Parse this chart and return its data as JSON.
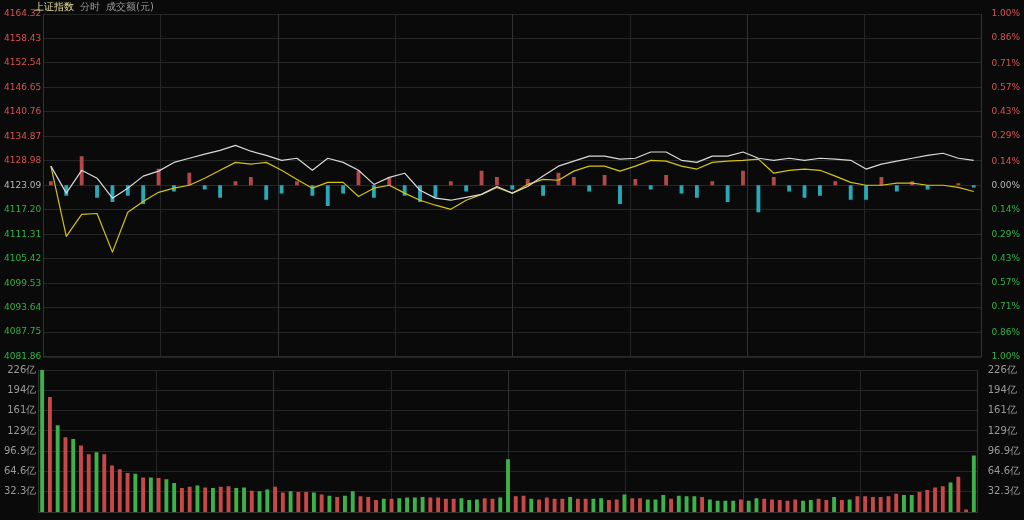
{
  "chart_data": [
    {
      "type": "line",
      "title": "上证指数",
      "annotations": [
        "分时",
        "成交额(元)"
      ],
      "categories": [
        null,
        null,
        null,
        null,
        null,
        null,
        null,
        null,
        null,
        null,
        null,
        null,
        null,
        null,
        null,
        null,
        null,
        null,
        null,
        null,
        null,
        null,
        null,
        null,
        null,
        null,
        null,
        null,
        null,
        null,
        null,
        null,
        null,
        null,
        null,
        null,
        null,
        null,
        null,
        null,
        null,
        null,
        null,
        null,
        null,
        null,
        null,
        null,
        null,
        null,
        null,
        null,
        null,
        null,
        null,
        null,
        null,
        null,
        null,
        null,
        null
      ],
      "series": [
        {
          "type": "bar",
          "base": [
            4123.09,
            4123.09,
            4123.09,
            4123.09,
            4123.09,
            4123.09,
            4123.09,
            4123.09,
            4123.09,
            4123.09,
            4123.09,
            4123.09,
            4123.09,
            4123.09,
            4123.09,
            4123.09,
            4123.09,
            4123.09,
            4123.09,
            4123.09,
            4123.09,
            4123.09,
            4123.09,
            4123.09,
            4123.09,
            4123.09,
            4123.09,
            4123.09,
            4123.09,
            4123.09,
            4123.09,
            4123.09,
            4123.09,
            4123.09,
            4123.09,
            4123.09,
            4123.09,
            4123.09,
            4123.09,
            4123.09,
            4123.09,
            4123.09,
            4123.09,
            4123.09,
            4123.09,
            4123.09,
            4123.09,
            4123.09,
            4123.09,
            4123.09,
            4123.09,
            4123.09,
            4123.09,
            4123.09,
            4123.09,
            4123.09,
            4123.09,
            4123.09,
            null,
            4123.09,
            4123.09
          ],
          "values": [
            1.0,
            -2.5,
            7.0,
            -3.0,
            -4.0,
            -2.5,
            -4.5,
            4.0,
            -1.5,
            3.0,
            -1.0,
            -3.0,
            1.0,
            2.0,
            -3.5,
            -2.0,
            1.0,
            -2.5,
            -5.0,
            -2.0,
            3.5,
            -3.0,
            2.0,
            -2.5,
            -4.0,
            -3.0,
            1.0,
            -1.5,
            3.5,
            2.0,
            -1.0,
            1.5,
            -2.5,
            3.0,
            2.0,
            -1.5,
            2.5,
            -4.5,
            1.5,
            -1.0,
            2.5,
            -2.0,
            -3.0,
            1.0,
            -4.0,
            3.5,
            -6.5,
            2.0,
            -1.5,
            -3.0,
            -2.5,
            1.0,
            -3.5,
            -3.5,
            2.0,
            -1.5,
            1.0,
            -1.0,
            null,
            0.5,
            -0.5
          ],
          "colors": [
            "#b24848",
            "#29a9b8",
            "#b24848",
            "#29a9b8",
            "#29a9b8",
            "#29a9b8",
            "#29a9b8",
            "#b24848",
            "#29a9b8",
            "#b24848",
            "#29a9b8",
            "#29a9b8",
            "#b24848",
            "#b24848",
            "#29a9b8",
            "#29a9b8",
            "#b24848",
            "#29a9b8",
            "#29a9b8",
            "#29a9b8",
            "#b24848",
            "#29a9b8",
            "#b24848",
            "#29a9b8",
            "#29a9b8",
            "#29a9b8",
            "#b24848",
            "#29a9b8",
            "#b24848",
            "#b24848",
            "#29a9b8",
            "#b24848",
            "#29a9b8",
            "#b24848",
            "#b24848",
            "#29a9b8",
            "#b24848",
            "#29a9b8",
            "#b24848",
            "#29a9b8",
            "#b24848",
            "#29a9b8",
            "#29a9b8",
            "#b24848",
            "#29a9b8",
            "#b24848",
            "#29a9b8",
            "#b24848",
            "#29a9b8",
            "#29a9b8",
            "#29a9b8",
            "#b24848",
            "#29a9b8",
            "#29a9b8",
            "#b24848",
            "#29a9b8",
            "#b24848",
            "#29a9b8",
            "#29a9b8",
            "#b24848",
            "#29a9b8"
          ]
        },
        {
          "type": "line",
          "color": "#d8d8d8",
          "values": [
            4127.7,
            4121.2,
            4126.7,
            4124.8,
            4120.0,
            4122.4,
            4125.3,
            4126.5,
            4128.6,
            4129.6,
            4130.6,
            4131.5,
            4132.7,
            4131.3,
            4130.3,
            4129.1,
            4129.6,
            4126.7,
            4129.6,
            4128.6,
            4126.7,
            4123.3,
            4125.0,
            4126.0,
            4121.9,
            4120.0,
            4119.5,
            4120.2,
            4120.9,
            4122.8,
            4121.2,
            4122.8,
            4125.3,
            4127.7,
            4128.9,
            4130.1,
            4130.1,
            4129.4,
            4129.6,
            4131.1,
            4131.1,
            4129.1,
            4128.6,
            4130.1,
            4130.1,
            4131.1,
            4129.6,
            4129.1,
            4129.6,
            4129.1,
            4129.6,
            4129.4,
            4129.1,
            4127.0,
            4128.2,
            4128.9,
            4129.6,
            4130.3,
            4130.8,
            4129.6,
            4129.1
          ]
        },
        {
          "type": "line",
          "color": "#d4c312",
          "values": [
            4127.7,
            4110.8,
            4116.1,
            4116.3,
            4107.0,
            4116.6,
            4119.2,
            4121.4,
            4122.4,
            4123.1,
            4124.8,
            4126.7,
            4128.6,
            4128.2,
            4128.6,
            4126.7,
            4124.5,
            4122.4,
            4123.8,
            4123.8,
            4120.4,
            4122.4,
            4123.1,
            4121.2,
            4119.5,
            4118.3,
            4117.3,
            4119.5,
            4120.9,
            4122.6,
            4121.2,
            4123.3,
            4124.5,
            4124.3,
            4126.5,
            4127.7,
            4127.7,
            4126.5,
            4127.7,
            4129.1,
            4128.9,
            4127.7,
            4127.0,
            4128.6,
            4128.9,
            4129.1,
            4129.4,
            4126.0,
            4126.7,
            4127.0,
            4126.7,
            4125.3,
            4123.8,
            4123.1,
            4123.1,
            4123.6,
            4123.6,
            4123.1,
            4123.1,
            4122.6,
            4121.6
          ]
        }
      ],
      "ylim": [
        4081.86,
        4164.32
      ],
      "yticks": [
        {
          "value": 4081.86,
          "label": "4081.86"
        },
        {
          "value": 4087.75,
          "label": "4087.75"
        },
        {
          "value": 4093.64,
          "label": "4093.64"
        },
        {
          "value": 4099.53,
          "label": "4099.53"
        },
        {
          "value": 4105.42,
          "label": "4105.42"
        },
        {
          "value": 4111.31,
          "label": "4111.31"
        },
        {
          "value": 4117.2,
          "label": "4117.20"
        },
        {
          "value": 4123.09,
          "label": "4123.09"
        },
        {
          "value": 4128.98,
          "label": "4128.98"
        },
        {
          "value": 4134.87,
          "label": "4134.87"
        },
        {
          "value": 4140.76,
          "label": "4140.76"
        },
        {
          "value": 4146.65,
          "label": "4146.65"
        },
        {
          "value": 4152.54,
          "label": "4152.54"
        },
        {
          "value": 4158.43,
          "label": "4158.43"
        },
        {
          "value": 4164.32,
          "label": "4164.32"
        }
      ],
      "y2lim": [
        -1.0,
        1.0
      ],
      "y2ticks": [
        {
          "value": -1.0,
          "label": "1.00%"
        },
        {
          "value": -0.86,
          "label": "0.86%"
        },
        {
          "value": -0.71,
          "label": "0.71%"
        },
        {
          "value": -0.57,
          "label": "0.57%"
        },
        {
          "value": -0.43,
          "label": "0.43%"
        },
        {
          "value": -0.29,
          "label": "0.29%"
        },
        {
          "value": -0.14,
          "label": "0.14%"
        },
        {
          "value": 0,
          "label": "0.00%"
        },
        {
          "value": 0.14,
          "label": "0.14%"
        },
        {
          "value": 0.29,
          "label": "0.29%"
        },
        {
          "value": 0.43,
          "label": "0.43%"
        },
        {
          "value": 0.57,
          "label": "0.57%"
        },
        {
          "value": 0.71,
          "label": "0.71%"
        },
        {
          "value": 0.86,
          "label": "0.86%"
        },
        {
          "value": 1.0,
          "label": "1.00%"
        }
      ],
      "grid": true,
      "marker": "none"
    },
    {
      "type": "bar",
      "categories": [
        null,
        null,
        null,
        null,
        null,
        null,
        null,
        null,
        null,
        null,
        null,
        null,
        null,
        null,
        null,
        null,
        null,
        null,
        null,
        null,
        null,
        null,
        null,
        null,
        null,
        null,
        null,
        null,
        null,
        null,
        null,
        null,
        null,
        null,
        null,
        null,
        null,
        null,
        null,
        null,
        null,
        null,
        null,
        null,
        null,
        null,
        null,
        null,
        null,
        null,
        null,
        null,
        null,
        null,
        null,
        null,
        null,
        null,
        null,
        null,
        null,
        null,
        null,
        null,
        null,
        null,
        null,
        null,
        null,
        null,
        null,
        null,
        null,
        null,
        null,
        null,
        null,
        null,
        null,
        null,
        null,
        null,
        null,
        null,
        null,
        null,
        null,
        null,
        null,
        null,
        null,
        null,
        null,
        null,
        null,
        null,
        null,
        null,
        null,
        null,
        null,
        null,
        null,
        null,
        null,
        null,
        null,
        null,
        null,
        null,
        null,
        null,
        null,
        null,
        null,
        null,
        null,
        null,
        null,
        null,
        null
      ],
      "values": [
        226,
        183,
        138,
        119,
        116,
        106,
        92,
        95,
        92,
        74,
        68,
        62,
        61,
        55,
        55,
        54,
        52,
        46,
        38,
        40,
        42,
        39,
        38,
        40,
        41,
        38,
        39,
        34,
        33,
        36,
        40,
        31,
        33,
        32,
        32,
        31,
        28,
        26,
        24,
        26,
        33,
        25,
        24,
        19,
        21,
        21,
        22,
        23,
        23,
        24,
        23,
        23,
        21,
        21,
        22,
        19,
        20,
        22,
        21,
        23,
        84,
        25,
        26,
        21,
        20,
        23,
        21,
        21,
        24,
        21,
        21,
        21,
        22,
        19,
        20,
        28,
        22,
        22,
        20,
        20,
        27,
        21,
        26,
        25,
        25,
        24,
        20,
        18,
        18,
        18,
        20,
        18,
        22,
        21,
        20,
        19,
        18,
        20,
        18,
        19,
        21,
        19,
        24,
        19,
        20,
        25,
        25,
        24,
        24,
        25,
        29,
        27,
        27,
        32,
        35,
        39,
        41,
        47,
        56,
        4,
        90
      ],
      "colors": [
        "#3cb34a",
        "#c8484a",
        "#3cb34a",
        "#c8484a",
        "#3cb34a",
        "#c8484a",
        "#c8484a",
        "#3cb34a",
        "#c8484a",
        "#c8484a",
        "#c8484a",
        "#c8484a",
        "#3cb34a",
        "#c8484a",
        "#3cb34a",
        "#c8484a",
        "#3cb34a",
        "#3cb34a",
        "#c8484a",
        "#c8484a",
        "#3cb34a",
        "#c8484a",
        "#3cb34a",
        "#c8484a",
        "#c8484a",
        "#3cb34a",
        "#3cb34a",
        "#c8484a",
        "#3cb34a",
        "#3cb34a",
        "#c8484a",
        "#c8484a",
        "#3cb34a",
        "#c8484a",
        "#c8484a",
        "#3cb34a",
        "#c8484a",
        "#3cb34a",
        "#c8484a",
        "#3cb34a",
        "#3cb34a",
        "#c8484a",
        "#c8484a",
        "#c8484a",
        "#3cb34a",
        "#c8484a",
        "#3cb34a",
        "#3cb34a",
        "#3cb34a",
        "#3cb34a",
        "#c8484a",
        "#c8484a",
        "#c8484a",
        "#c8484a",
        "#3cb34a",
        "#3cb34a",
        "#3cb34a",
        "#c8484a",
        "#c8484a",
        "#3cb34a",
        "#3cb34a",
        "#c8484a",
        "#c8484a",
        "#3cb34a",
        "#c8484a",
        "#c8484a",
        "#c8484a",
        "#c8484a",
        "#3cb34a",
        "#c8484a",
        "#c8484a",
        "#3cb34a",
        "#3cb34a",
        "#c8484a",
        "#c8484a",
        "#3cb34a",
        "#c8484a",
        "#c8484a",
        "#3cb34a",
        "#3cb34a",
        "#3cb34a",
        "#c8484a",
        "#3cb34a",
        "#3cb34a",
        "#3cb34a",
        "#c8484a",
        "#3cb34a",
        "#3cb34a",
        "#3cb34a",
        "#3cb34a",
        "#c8484a",
        "#3cb34a",
        "#3cb34a",
        "#c8484a",
        "#c8484a",
        "#c8484a",
        "#c8484a",
        "#c8484a",
        "#3cb34a",
        "#3cb34a",
        "#c8484a",
        "#c8484a",
        "#3cb34a",
        "#c8484a",
        "#3cb34a",
        "#c8484a",
        "#c8484a",
        "#c8484a",
        "#c8484a",
        "#c8484a",
        "#c8484a",
        "#3cb34a",
        "#3cb34a",
        "#c8484a",
        "#c8484a",
        "#c8484a",
        "#c8484a",
        "#3cb34a",
        "#c8484a",
        "#c8484a",
        "#3cb34a"
      ],
      "ylim": [
        0,
        226
      ],
      "yticks": [
        {
          "value": 32.3,
          "label": "32.3亿"
        },
        {
          "value": 64.6,
          "label": "64.6亿"
        },
        {
          "value": 96.9,
          "label": "96.9亿"
        },
        {
          "value": 129,
          "label": "129亿"
        },
        {
          "value": 161,
          "label": "161亿"
        },
        {
          "value": 194,
          "label": "194亿"
        },
        {
          "value": 226,
          "label": "226亿"
        }
      ],
      "y2lim": [
        0,
        226
      ],
      "y2ticks": [
        {
          "value": 32.3,
          "label": "32.3亿"
        },
        {
          "value": 64.6,
          "label": "64.6亿"
        },
        {
          "value": 96.9,
          "label": "96.9亿"
        },
        {
          "value": 129,
          "label": "129亿"
        },
        {
          "value": 161,
          "label": "161亿"
        },
        {
          "value": 194,
          "label": "194亿"
        },
        {
          "value": 226,
          "label": "226亿"
        }
      ],
      "grid": true
    }
  ]
}
